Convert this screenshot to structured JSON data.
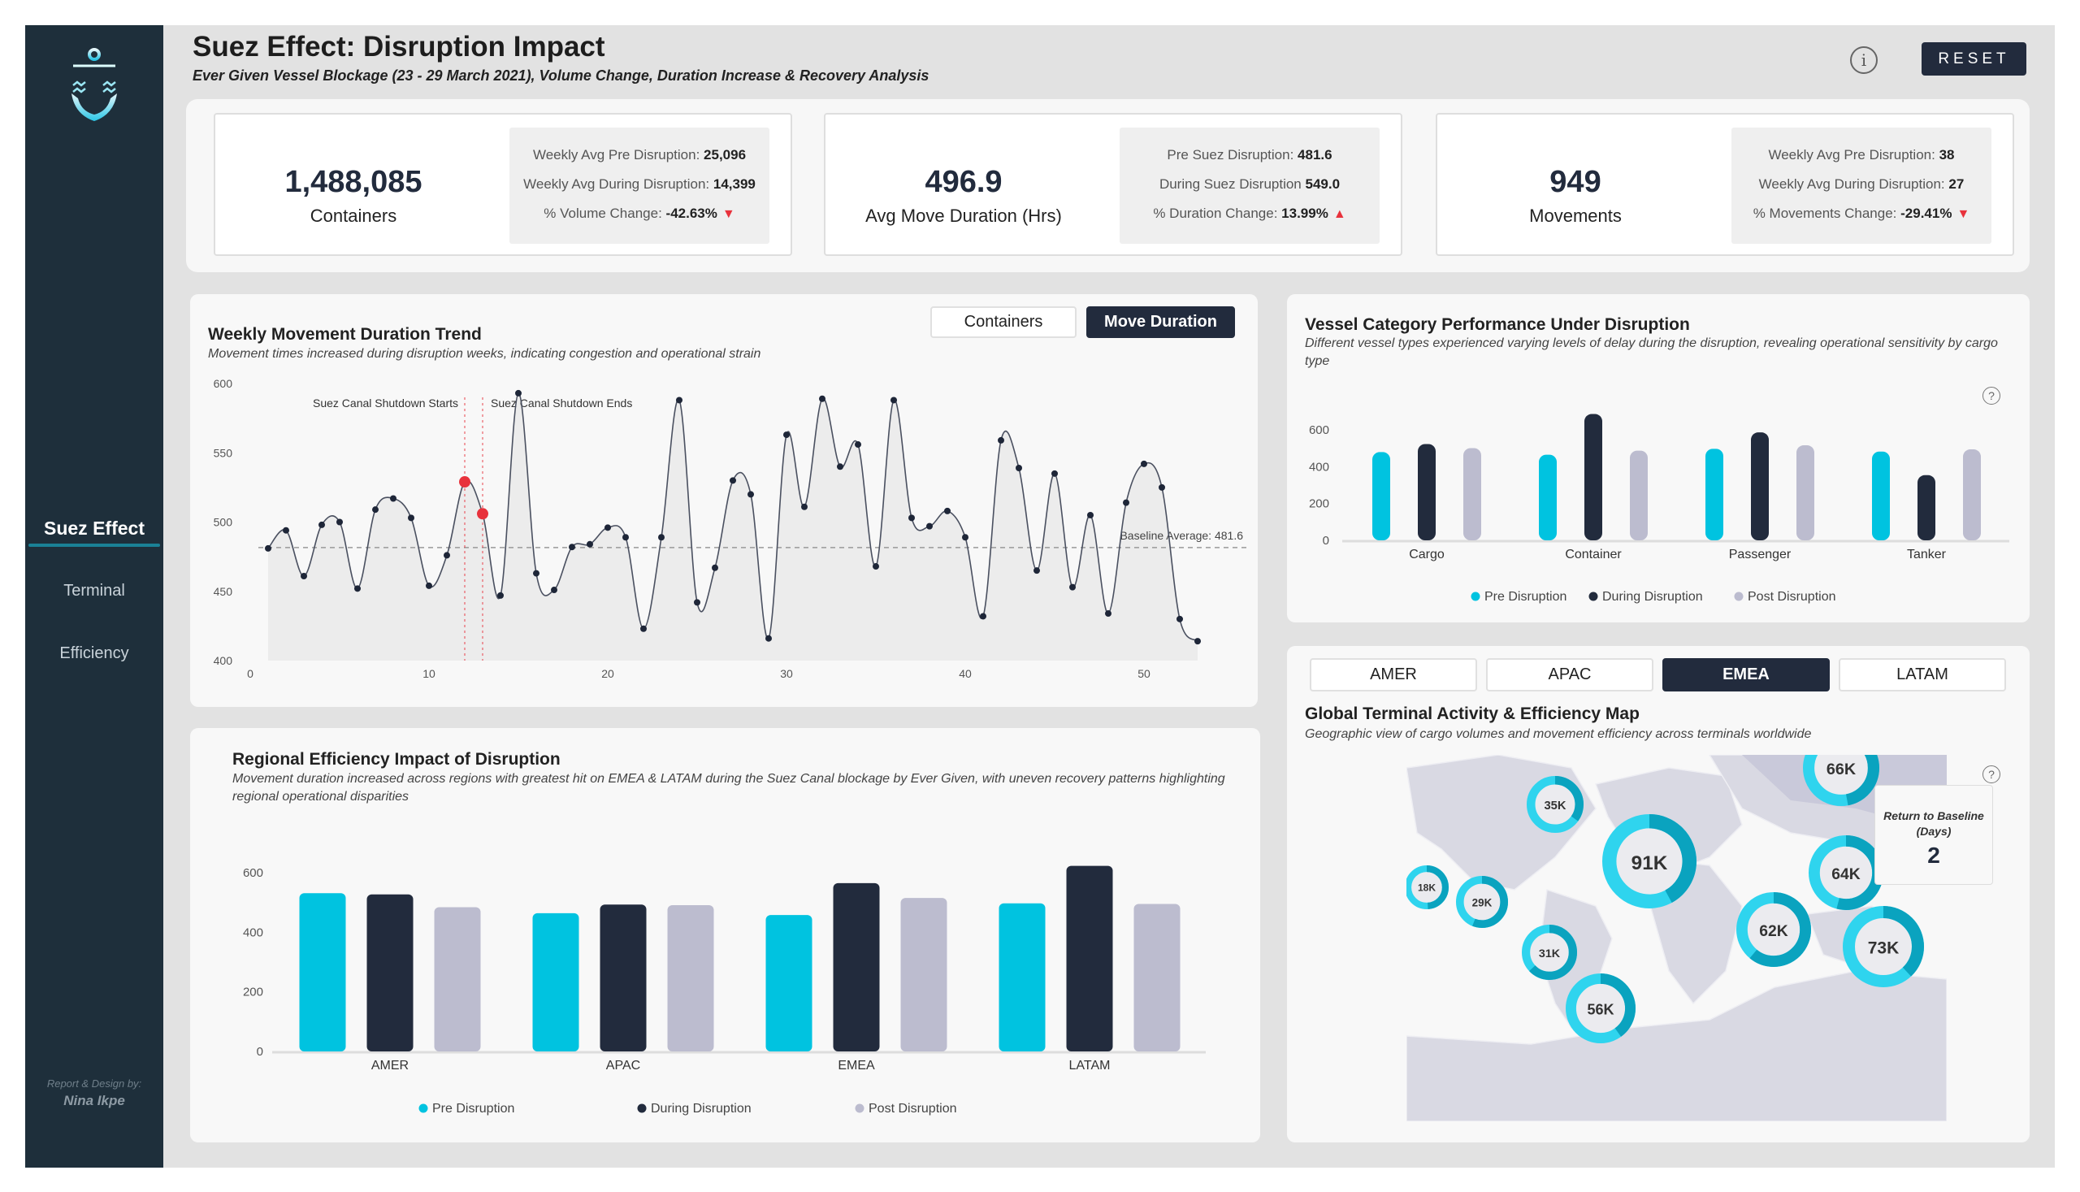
{
  "header": {
    "title": "Suez Effect: Disruption Impact",
    "subtitle": "Ever Given Vessel Blockage (23 - 29 March 2021), Volume Change, Duration Increase & Recovery Analysis",
    "info_icon": "info-icon",
    "reset_label": "RESET"
  },
  "sidebar": {
    "logo_icon": "anchor-icon",
    "items": [
      {
        "label": "Suez Effect",
        "active": true
      },
      {
        "label": "Terminal"
      },
      {
        "label": "Efficiency"
      }
    ],
    "credit_label": "Report & Design by:",
    "credit_name": "Nina Ikpe"
  },
  "kpis": [
    {
      "value": "1,488,085",
      "label": "Containers",
      "lines": [
        {
          "k": "Weekly Avg Pre Disruption:",
          "v": "25,096"
        },
        {
          "k": "Weekly Avg During Disruption:",
          "v": "14,399"
        },
        {
          "k": "% Volume Change:",
          "v": "-42.63%",
          "trend": "down"
        }
      ]
    },
    {
      "value": "496.9",
      "label": "Avg Move Duration (Hrs)",
      "lines": [
        {
          "k": "Pre Suez Disruption:",
          "v": "481.6"
        },
        {
          "k": "During Suez Disruption",
          "v": "549.0"
        },
        {
          "k": "% Duration Change:",
          "v": "13.99%",
          "trend": "up"
        }
      ]
    },
    {
      "value": "949",
      "label": "Movements",
      "lines": [
        {
          "k": "Weekly Avg Pre Disruption:",
          "v": "38"
        },
        {
          "k": "Weekly Avg During Disruption:",
          "v": "27"
        },
        {
          "k": "% Movements Change:",
          "v": "-29.41%",
          "trend": "down"
        }
      ]
    }
  ],
  "colors": {
    "pre": "#00c3e0",
    "during": "#222b3d",
    "post": "#bcbccf",
    "alert": "#e8323c",
    "sidebar": "#1e2f3b"
  },
  "trend_panel": {
    "toggles": [
      {
        "label": "Containers",
        "active": false
      },
      {
        "label": "Move Duration",
        "active": true
      }
    ]
  },
  "map_panel": {
    "tabs": [
      {
        "label": "AMER"
      },
      {
        "label": "APAC"
      },
      {
        "label": "EMEA",
        "active": true
      },
      {
        "label": "LATAM"
      }
    ],
    "title": "Global Terminal Activity & Efficiency Map",
    "subtitle": "Geographic view of cargo volumes and movement efficiency across terminals worldwide",
    "baseline_card": {
      "label": "Return to Baseline (Days)",
      "value": "2"
    },
    "bubbles": [
      {
        "label": "35K",
        "value": 35
      },
      {
        "label": "91K",
        "value": 91
      },
      {
        "label": "18K",
        "value": 18
      },
      {
        "label": "29K",
        "value": 29
      },
      {
        "label": "31K",
        "value": 31
      },
      {
        "label": "56K",
        "value": 56
      },
      {
        "label": "66K",
        "value": 66
      },
      {
        "label": "64K",
        "value": 64
      },
      {
        "label": "62K",
        "value": 62
      },
      {
        "label": "73K",
        "value": 73
      }
    ]
  },
  "chart_data": [
    {
      "type": "line",
      "title": "Weekly Movement Duration Trend",
      "subtitle": "Movement times increased during disruption weeks, indicating congestion and operational strain",
      "xlabel": "",
      "ylabel": "",
      "xlim": [
        0,
        54
      ],
      "ylim": [
        400,
        600
      ],
      "xticks": [
        0,
        10,
        20,
        30,
        40,
        50
      ],
      "yticks": [
        400,
        450,
        500,
        550,
        600
      ],
      "grid": false,
      "x": [
        1,
        2,
        3,
        4,
        5,
        6,
        7,
        8,
        9,
        10,
        11,
        12,
        13,
        14,
        15,
        16,
        17,
        18,
        19,
        20,
        21,
        22,
        23,
        24,
        25,
        26,
        27,
        28,
        29,
        30,
        31,
        32,
        33,
        34,
        35,
        36,
        37,
        38,
        39,
        40,
        41,
        42,
        43,
        44,
        45,
        46,
        47,
        48,
        49,
        50,
        51,
        52,
        53
      ],
      "y": [
        481,
        494,
        461,
        498,
        500,
        452,
        509,
        517,
        503,
        454,
        476,
        529,
        506,
        447,
        593,
        463,
        451,
        482,
        484,
        496,
        489,
        423,
        489,
        588,
        442,
        467,
        530,
        520,
        416,
        563,
        511,
        589,
        540,
        556,
        468,
        588,
        503,
        497,
        508,
        489,
        432,
        559,
        539,
        465,
        535,
        453,
        505,
        434,
        514,
        542,
        525,
        430,
        414
      ],
      "highlight_x": [
        12,
        13
      ],
      "annotations": [
        {
          "x": 12,
          "text": "Suez Canal Shutdown Starts"
        },
        {
          "x": 13,
          "text": "Suez Canal Shutdown Ends"
        }
      ],
      "baseline": {
        "value": 481.6,
        "label": "Baseline Average: 481.6"
      }
    },
    {
      "type": "bar",
      "title": "Vessel Category Performance Under Disruption",
      "subtitle": "Different vessel types experienced varying levels of delay during the disruption, revealing operational sensitivity by cargo type",
      "categories": [
        "Cargo",
        "Container",
        "Passenger",
        "Tanker"
      ],
      "ylim": [
        0,
        700
      ],
      "yticks": [
        0,
        200,
        400,
        600
      ],
      "legend": "bottom",
      "series": [
        {
          "name": "Pre Disruption",
          "values": [
            479,
            465,
            497,
            482
          ]
        },
        {
          "name": "During Disruption",
          "values": [
            523,
            686,
            586,
            354
          ]
        },
        {
          "name": "Post Disruption",
          "values": [
            501,
            487,
            516,
            494
          ]
        }
      ]
    },
    {
      "type": "bar",
      "title": "Regional Efficiency Impact of Disruption",
      "subtitle": "Movement duration increased across regions with greatest hit on EMEA & LATAM during the Suez Canal blockage by Ever Given, with uneven recovery patterns highlighting regional operational disparities",
      "categories": [
        "AMER",
        "APAC",
        "EMEA",
        "LATAM"
      ],
      "ylim": [
        0,
        650
      ],
      "yticks": [
        0,
        200,
        400,
        600
      ],
      "legend": "bottom",
      "series": [
        {
          "name": "Pre Disruption",
          "values": [
            531,
            464,
            458,
            497
          ]
        },
        {
          "name": "During Disruption",
          "values": [
            527,
            493,
            565,
            623
          ]
        },
        {
          "name": "Post Disruption",
          "values": [
            484,
            491,
            515,
            495
          ]
        }
      ]
    }
  ]
}
